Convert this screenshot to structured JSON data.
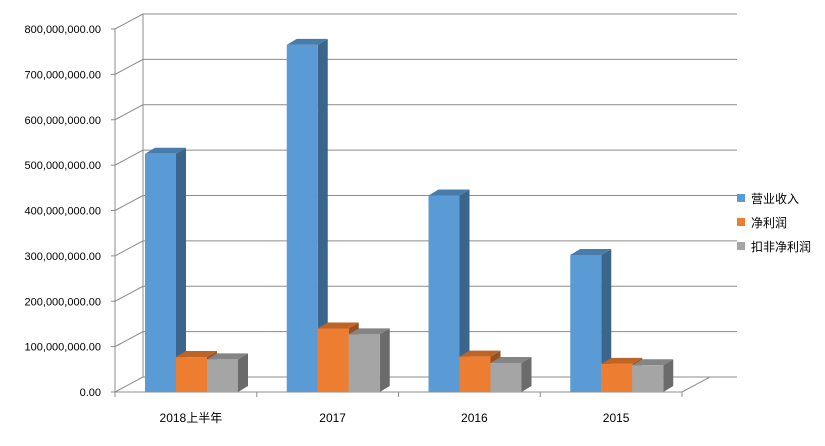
{
  "chart_data": {
    "type": "bar",
    "title": "",
    "xlabel": "",
    "ylabel": "",
    "ylim": [
      0,
      800000000
    ],
    "yticks": [
      0,
      100000000,
      200000000,
      300000000,
      400000000,
      500000000,
      600000000,
      700000000,
      800000000
    ],
    "ytick_labels": [
      "0.00",
      "100,000,000.00",
      "200,000,000.00",
      "300,000,000.00",
      "400,000,000.00",
      "500,000,000.00",
      "600,000,000.00",
      "700,000,000.00",
      "800,000,000.00"
    ],
    "categories": [
      "2018上半年",
      "2017",
      "2016",
      "2015"
    ],
    "series": [
      {
        "name": "营业收入",
        "color": "#5B9BD5",
        "values": [
          525000000,
          765000000,
          433000000,
          302000000
        ]
      },
      {
        "name": "净利润",
        "color": "#ED7D31",
        "values": [
          77000000,
          140000000,
          78000000,
          62000000
        ]
      },
      {
        "name": "扣非净利润",
        "color": "#A5A5A5",
        "values": [
          72000000,
          127000000,
          64000000,
          59000000
        ]
      }
    ],
    "grid": true,
    "legend": "right",
    "style": "3d-column"
  }
}
